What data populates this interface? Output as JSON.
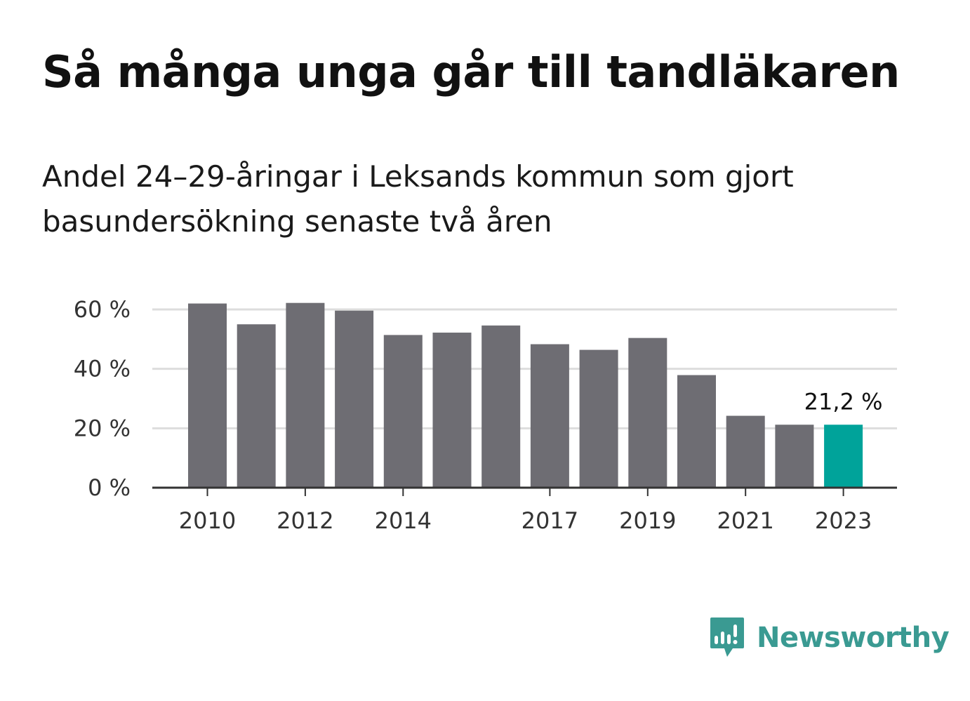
{
  "header": {
    "title": "Så många unga går till tandläkaren",
    "subtitle": "Andel 24–29-åringar i Leksands kommun som gjort basundersökning senaste två åren"
  },
  "chart_data": {
    "type": "bar",
    "categories": [
      "2010",
      "2011",
      "2012",
      "2013",
      "2014",
      "2015",
      "2016",
      "2017",
      "2018",
      "2019",
      "2020",
      "2021",
      "2022",
      "2023"
    ],
    "values": [
      62.0,
      55.0,
      62.2,
      59.6,
      51.4,
      52.2,
      54.6,
      48.3,
      46.4,
      50.4,
      37.9,
      24.2,
      21.2,
      21.2
    ],
    "x_tick_labels": [
      "2010",
      "2012",
      "2014",
      "2017",
      "2019",
      "2021",
      "2023"
    ],
    "y_ticks": [
      0,
      20,
      40,
      60
    ],
    "y_tick_labels": [
      "0 %",
      "20 %",
      "40 %",
      "60 %"
    ],
    "ylim": [
      0,
      60
    ],
    "highlight_index": 13,
    "annotation": "21,2 %",
    "grid": true,
    "colors": {
      "bar": "#6e6d73",
      "highlight": "#00a39a",
      "grid": "#dddddd",
      "axis": "#333333"
    }
  },
  "brand": {
    "name": "Newsworthy",
    "icon": "newsworthy-logo-icon",
    "color": "#3a9a92"
  }
}
